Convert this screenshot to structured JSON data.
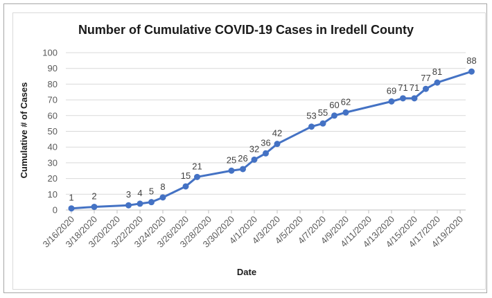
{
  "chart_data": {
    "type": "line",
    "title": "Number of Cumulative COVID-19 Cases in Iredell County",
    "xlabel": "Date",
    "ylabel": "Cumulative # of Cases",
    "ylim": [
      0,
      100
    ],
    "yticks": [
      0,
      10,
      20,
      30,
      40,
      50,
      60,
      70,
      80,
      90,
      100
    ],
    "x_tick_labels": [
      "3/16/2020",
      "3/18/2020",
      "3/20/2020",
      "3/22/2020",
      "3/24/2020",
      "3/26/2020",
      "3/28/2020",
      "3/30/2020",
      "4/1/2020",
      "4/3/2020",
      "4/5/2020",
      "4/7/2020",
      "4/9/2020",
      "4/11/2020",
      "4/13/2020",
      "4/15/2020",
      "4/17/2020",
      "4/19/2020"
    ],
    "x": [
      "3/16/2020",
      "3/18/2020",
      "3/21/2020",
      "3/22/2020",
      "3/23/2020",
      "3/24/2020",
      "3/26/2020",
      "3/27/2020",
      "3/30/2020",
      "3/31/2020",
      "4/1/2020",
      "4/2/2020",
      "4/3/2020",
      "4/6/2020",
      "4/7/2020",
      "4/8/2020",
      "4/9/2020",
      "4/13/2020",
      "4/14/2020",
      "4/15/2020",
      "4/16/2020",
      "4/17/2020",
      "4/20/2020"
    ],
    "values": [
      1,
      2,
      3,
      4,
      5,
      8,
      15,
      21,
      25,
      26,
      32,
      36,
      42,
      53,
      55,
      60,
      62,
      69,
      71,
      71,
      77,
      81,
      88
    ],
    "data_labels": [
      "1",
      "2",
      "3",
      "4",
      "5",
      "8",
      "15",
      "21",
      "25",
      "26",
      "32",
      "36",
      "42",
      "53",
      "55",
      "60",
      "62",
      "69",
      "71",
      "71",
      "77",
      "81",
      "88"
    ],
    "grid": true,
    "legend": "none",
    "colors": {
      "line": "#4472c4",
      "grid": "#d9d9d9",
      "text": "#595959"
    }
  }
}
